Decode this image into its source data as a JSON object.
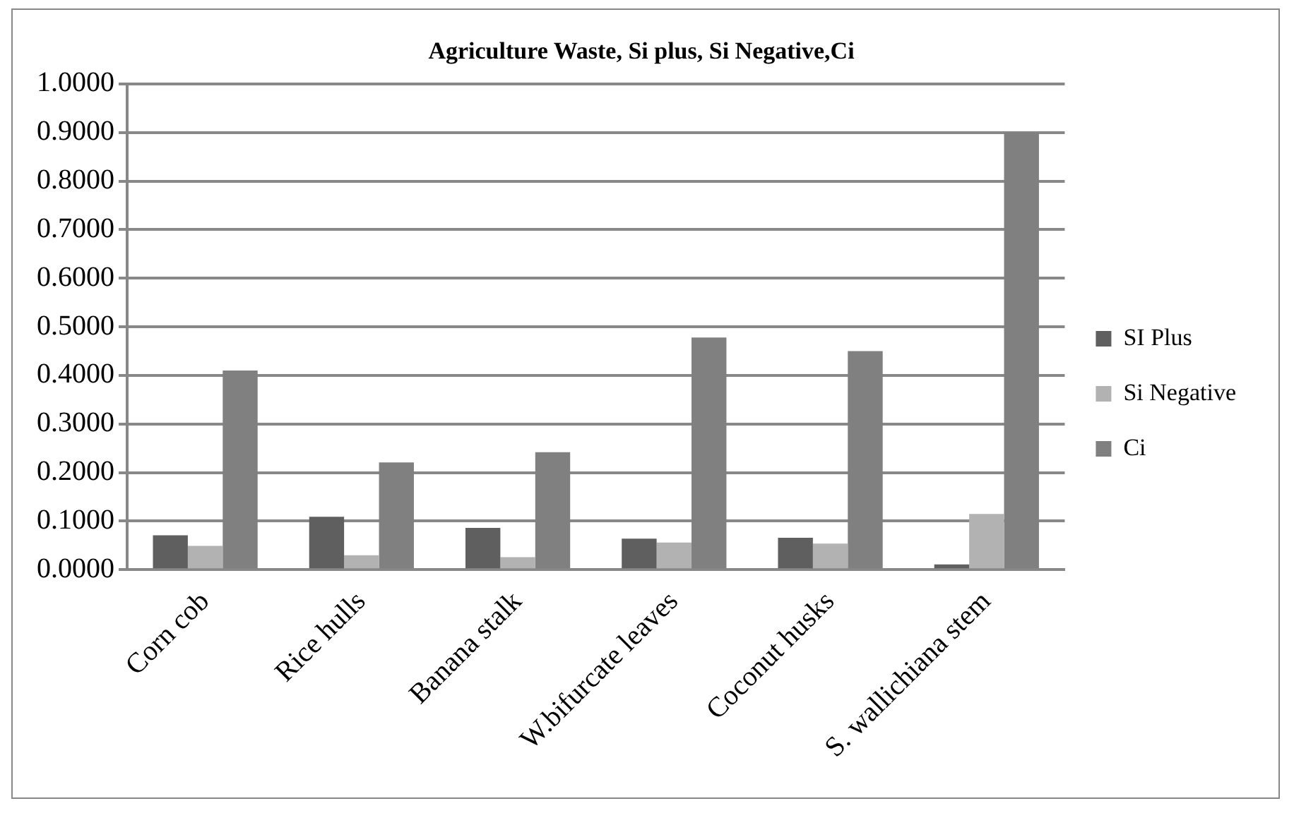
{
  "chart_data": {
    "type": "bar",
    "title": "Agriculture Waste, Si plus, Si Negative,Ci",
    "categories": [
      "Corn cob",
      "Rice hulls",
      "Banana stalk",
      "W.bifurcate leaves",
      "Coconut husks",
      "S. wallichiana stem"
    ],
    "series": [
      {
        "name": "SI Plus",
        "color": "#5f5f5f",
        "values": [
          0.071,
          0.109,
          0.086,
          0.064,
          0.066,
          0.011
        ]
      },
      {
        "name": "Si Negative",
        "color": "#b2b2b2",
        "values": [
          0.049,
          0.03,
          0.026,
          0.056,
          0.054,
          0.115
        ]
      },
      {
        "name": "Ci",
        "color": "#808080",
        "values": [
          0.41,
          0.221,
          0.242,
          0.478,
          0.45,
          0.9
        ]
      }
    ],
    "ylim": [
      0,
      1
    ],
    "yticks": [
      {
        "value": 0,
        "label": "0.0000"
      },
      {
        "value": 0.1,
        "label": "0.1000"
      },
      {
        "value": 0.2,
        "label": "0.2000"
      },
      {
        "value": 0.3,
        "label": "0.3000"
      },
      {
        "value": 0.4,
        "label": "0.4000"
      },
      {
        "value": 0.5,
        "label": "0.5000"
      },
      {
        "value": 0.6,
        "label": "0.6000"
      },
      {
        "value": 0.7,
        "label": "0.7000"
      },
      {
        "value": 0.8,
        "label": "0.8000"
      },
      {
        "value": 0.9,
        "label": "0.9000"
      },
      {
        "value": 1,
        "label": "1.0000"
      }
    ],
    "grid": "y",
    "legend": "right"
  }
}
